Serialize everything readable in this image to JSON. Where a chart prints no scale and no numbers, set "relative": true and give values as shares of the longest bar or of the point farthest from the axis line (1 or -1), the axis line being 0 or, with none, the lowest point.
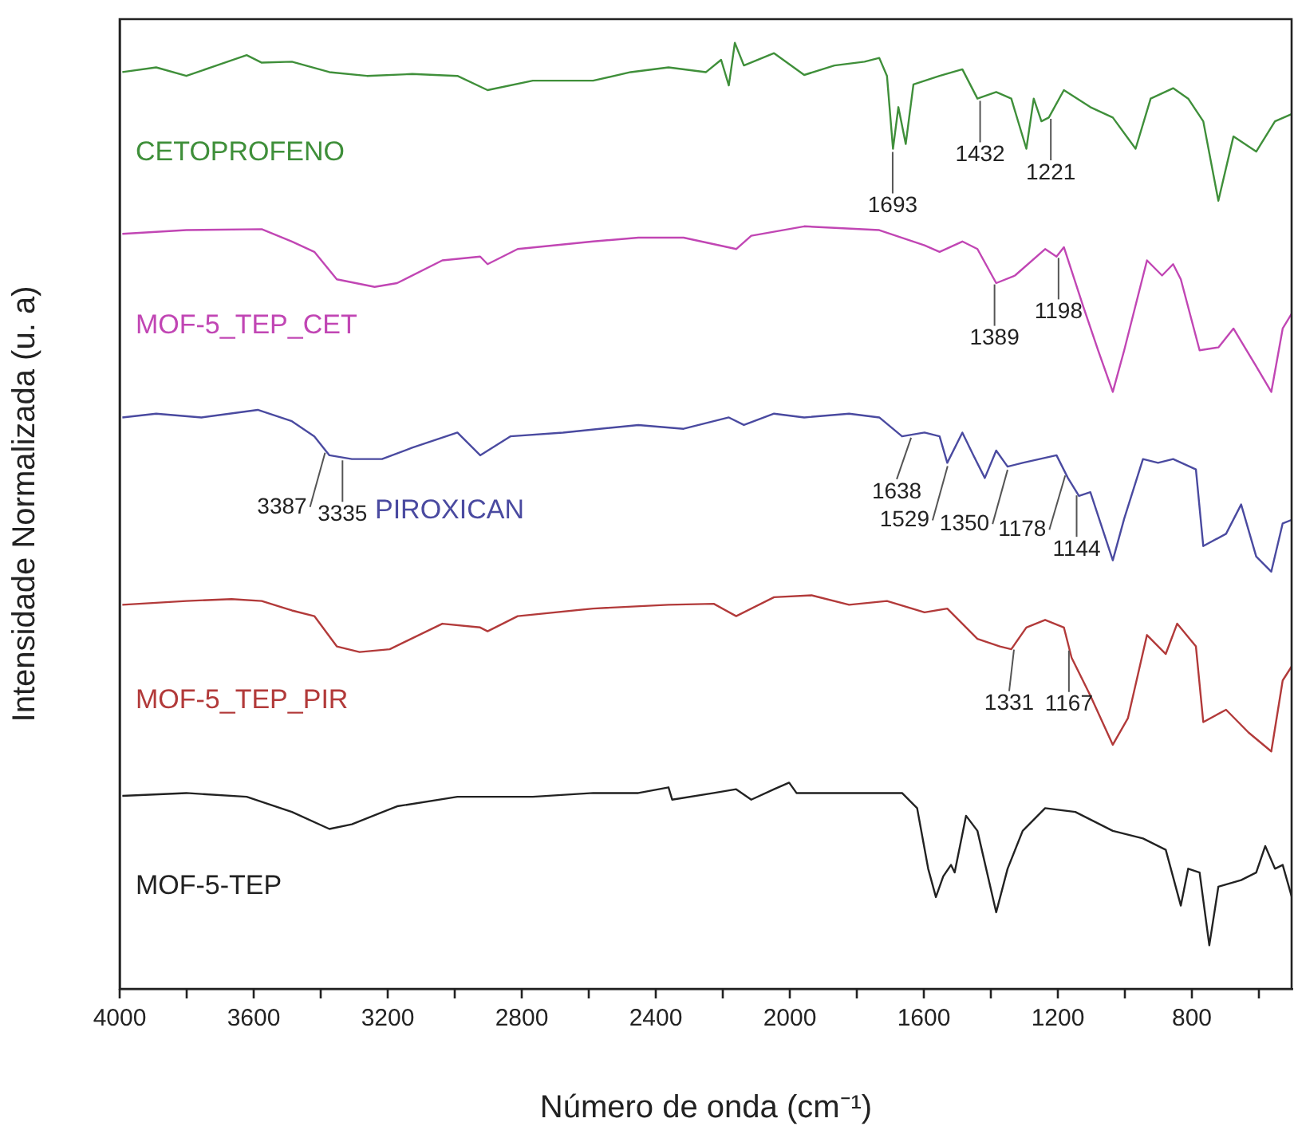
{
  "chart_data": {
    "type": "line",
    "relative": true,
    "xlabel": "Número de onda (cm⁻¹)",
    "ylabel": "Intensidade Normalizada (u. a)",
    "xlim": [
      4000,
      500
    ],
    "xticks": [
      4000,
      {
        "value": 3800,
        "label": null
      },
      3600,
      {
        "value": 3400,
        "label": null
      },
      3200,
      {
        "value": 3000,
        "label": null
      },
      2800,
      {
        "value": 2600,
        "label": null
      },
      2400,
      {
        "value": 2200,
        "label": null
      },
      2000,
      {
        "value": 1800,
        "label": null
      },
      1600,
      {
        "value": 1400,
        "label": null
      },
      1200,
      {
        "value": 1000,
        "label": null
      },
      800,
      {
        "value": 600,
        "label": null
      }
    ],
    "series": [
      {
        "name": "CETOPROFENO",
        "color": "#3f8f3a",
        "x": [
          3992,
          3891,
          3801,
          3711,
          3621,
          3576,
          3486,
          3374,
          3262,
          3127,
          2992,
          2902,
          2767,
          2587,
          2475,
          2362,
          2250,
          2205,
          2182,
          2164,
          2137,
          2047,
          1957,
          1867,
          1777,
          1733,
          1710,
          1692,
          1676,
          1654,
          1631,
          1553,
          1485,
          1440,
          1384,
          1339,
          1294,
          1272,
          1249,
          1227,
          1182,
          1103,
          1036,
          968,
          923,
          856,
          811,
          766,
          721,
          676,
          608,
          552,
          500
        ],
        "values": [
          0.969,
          0.974,
          0.965,
          0.976,
          0.987,
          0.979,
          0.98,
          0.969,
          0.965,
          0.967,
          0.965,
          0.95,
          0.96,
          0.96,
          0.969,
          0.974,
          0.969,
          0.982,
          0.955,
          1.0,
          0.976,
          0.989,
          0.966,
          0.976,
          0.98,
          0.984,
          0.965,
          0.888,
          0.932,
          0.893,
          0.956,
          0.965,
          0.972,
          0.941,
          0.948,
          0.941,
          0.888,
          0.941,
          0.917,
          0.921,
          0.95,
          0.932,
          0.921,
          0.888,
          0.941,
          0.952,
          0.941,
          0.917,
          0.833,
          0.901,
          0.885,
          0.917,
          0.925
        ]
      },
      {
        "name": "MOF-5_TEP_CET",
        "color": "#c146b4",
        "x": [
          3992,
          3801,
          3576,
          3486,
          3419,
          3352,
          3239,
          3172,
          3037,
          2924,
          2902,
          2812,
          2587,
          2452,
          2317,
          2160,
          2115,
          1957,
          1733,
          1598,
          1553,
          1485,
          1440,
          1384,
          1328,
          1238,
          1204,
          1182,
          1125,
          1080,
          1036,
          1002,
          934,
          889,
          856,
          833,
          777,
          721,
          676,
          608,
          563,
          529,
          500
        ],
        "values": [
          0.798,
          0.802,
          0.803,
          0.79,
          0.779,
          0.75,
          0.742,
          0.746,
          0.77,
          0.774,
          0.766,
          0.782,
          0.79,
          0.794,
          0.794,
          0.782,
          0.796,
          0.806,
          0.802,
          0.786,
          0.779,
          0.79,
          0.782,
          0.746,
          0.754,
          0.782,
          0.774,
          0.784,
          0.722,
          0.675,
          0.631,
          0.675,
          0.77,
          0.754,
          0.766,
          0.75,
          0.675,
          0.678,
          0.698,
          0.658,
          0.631,
          0.698,
          0.715
        ]
      },
      {
        "name": "PIROXICAN",
        "color": "#4a4aa0",
        "x": [
          3992,
          3891,
          3756,
          3588,
          3486,
          3419,
          3374,
          3307,
          3217,
          3127,
          2992,
          2924,
          2834,
          2677,
          2452,
          2317,
          2182,
          2137,
          2047,
          1957,
          1823,
          1733,
          1665,
          1598,
          1553,
          1530,
          1485,
          1452,
          1418,
          1384,
          1350,
          1305,
          1204,
          1170,
          1137,
          1103,
          1036,
          1002,
          946,
          901,
          856,
          788,
          766,
          698,
          653,
          608,
          563,
          529,
          500
        ],
        "values": [
          0.604,
          0.608,
          0.604,
          0.612,
          0.6,
          0.584,
          0.564,
          0.56,
          0.56,
          0.572,
          0.588,
          0.564,
          0.584,
          0.588,
          0.596,
          0.592,
          0.604,
          0.596,
          0.608,
          0.604,
          0.608,
          0.604,
          0.584,
          0.588,
          0.584,
          0.556,
          0.588,
          0.564,
          0.54,
          0.569,
          0.552,
          0.556,
          0.564,
          0.54,
          0.521,
          0.525,
          0.453,
          0.497,
          0.56,
          0.556,
          0.56,
          0.549,
          0.468,
          0.481,
          0.512,
          0.457,
          0.441,
          0.492,
          0.496
        ]
      },
      {
        "name": "MOF-5_TEP_PIR",
        "color": "#b23a3a",
        "x": [
          3992,
          3801,
          3666,
          3576,
          3486,
          3419,
          3352,
          3284,
          3194,
          3037,
          2924,
          2902,
          2812,
          2587,
          2362,
          2227,
          2160,
          2047,
          1935,
          1823,
          1710,
          1598,
          1530,
          1440,
          1373,
          1339,
          1294,
          1238,
          1182,
          1159,
          1103,
          1036,
          991,
          934,
          878,
          844,
          788,
          766,
          698,
          631,
          563,
          529,
          500
        ],
        "values": [
          0.406,
          0.41,
          0.412,
          0.41,
          0.4,
          0.394,
          0.362,
          0.356,
          0.359,
          0.386,
          0.382,
          0.378,
          0.394,
          0.402,
          0.406,
          0.407,
          0.394,
          0.414,
          0.416,
          0.406,
          0.41,
          0.398,
          0.402,
          0.37,
          0.362,
          0.359,
          0.382,
          0.39,
          0.382,
          0.35,
          0.31,
          0.258,
          0.286,
          0.374,
          0.354,
          0.386,
          0.362,
          0.282,
          0.295,
          0.271,
          0.251,
          0.326,
          0.342
        ]
      },
      {
        "name": "MOF-5-TEP",
        "color": "#222222",
        "x": [
          3992,
          3801,
          3621,
          3486,
          3374,
          3307,
          3172,
          2992,
          2767,
          2587,
          2452,
          2362,
          2351,
          2227,
          2160,
          2115,
          2047,
          2002,
          1980,
          1867,
          1665,
          1620,
          1587,
          1564,
          1542,
          1519,
          1508,
          1474,
          1440,
          1384,
          1350,
          1305,
          1238,
          1148,
          1036,
          946,
          878,
          833,
          811,
          777,
          748,
          721,
          653,
          608,
          581,
          552,
          529,
          500
        ],
        "values": [
          0.204,
          0.207,
          0.203,
          0.187,
          0.169,
          0.174,
          0.193,
          0.203,
          0.203,
          0.207,
          0.207,
          0.213,
          0.2,
          0.207,
          0.211,
          0.2,
          0.211,
          0.218,
          0.207,
          0.207,
          0.207,
          0.191,
          0.127,
          0.097,
          0.119,
          0.131,
          0.123,
          0.183,
          0.167,
          0.081,
          0.127,
          0.167,
          0.191,
          0.187,
          0.167,
          0.159,
          0.147,
          0.088,
          0.127,
          0.123,
          0.046,
          0.108,
          0.115,
          0.123,
          0.151,
          0.127,
          0.131,
          0.095
        ]
      }
    ],
    "annotations": [
      {
        "text": "1693",
        "x": 1693,
        "y": 0.888
      },
      {
        "text": "1432",
        "x": 1432,
        "y": 0.942
      },
      {
        "text": "1221",
        "x": 1221,
        "y": 0.923
      },
      {
        "text": "1389",
        "x": 1389,
        "y": 0.748
      },
      {
        "text": "1198",
        "x": 1198,
        "y": 0.776
      },
      {
        "text": "3387",
        "x": 3387,
        "y": 0.57
      },
      {
        "text": "3335",
        "x": 3335,
        "y": 0.562
      },
      {
        "text": "1638",
        "x": 1638,
        "y": 0.586
      },
      {
        "text": "1529",
        "x": 1529,
        "y": 0.556
      },
      {
        "text": "1178",
        "x": 1178,
        "y": 0.546
      },
      {
        "text": "1350",
        "x": 1350,
        "y": 0.552
      },
      {
        "text": "1144",
        "x": 1144,
        "y": 0.525
      },
      {
        "text": "1331",
        "x": 1331,
        "y": 0.362
      },
      {
        "text": "1167",
        "x": 1167,
        "y": 0.361
      }
    ]
  }
}
